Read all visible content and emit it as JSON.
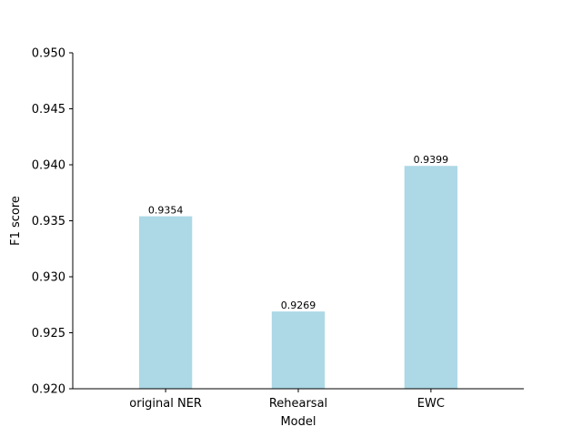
{
  "chart_data": {
    "type": "bar",
    "categories": [
      "original NER",
      "Rehearsal",
      "EWC"
    ],
    "values": [
      0.9354,
      0.9269,
      0.9399
    ],
    "value_labels": [
      "0.9354",
      "0.9269",
      "0.9399"
    ],
    "title": "",
    "xlabel": "Model",
    "ylabel": "F1 score",
    "ylim": [
      0.92,
      0.95
    ],
    "yticks": [
      0.92,
      0.925,
      0.93,
      0.935,
      0.94,
      0.945,
      0.95
    ],
    "ytick_labels": [
      "0.920",
      "0.925",
      "0.930",
      "0.935",
      "0.940",
      "0.945",
      "0.950"
    ],
    "grid": false,
    "bar_color": "#add8e6"
  }
}
